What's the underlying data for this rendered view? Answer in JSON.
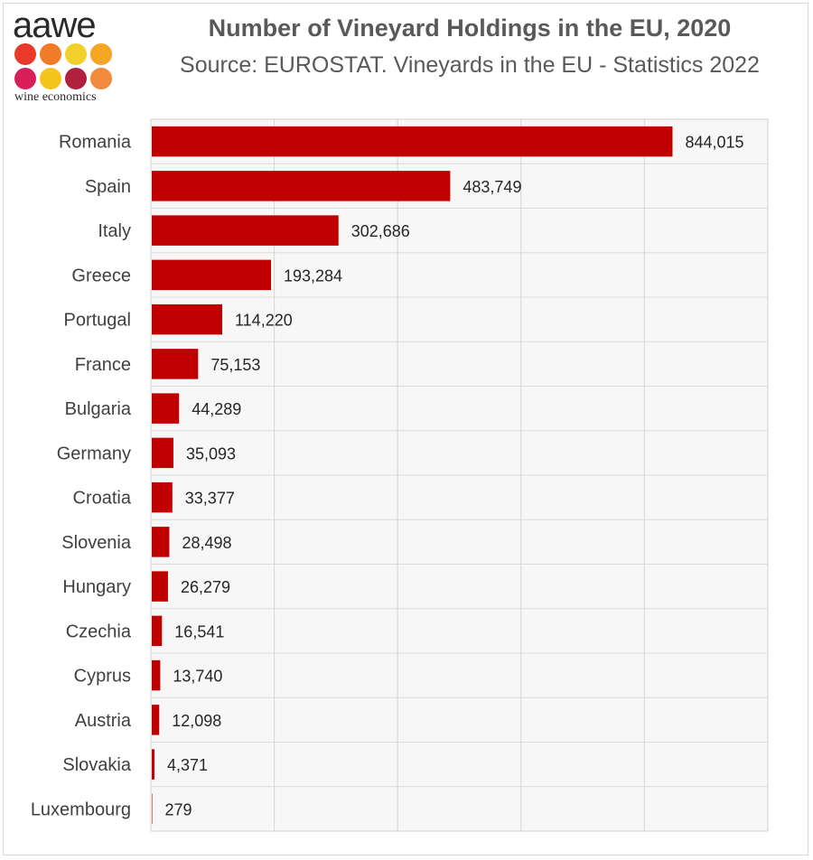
{
  "logo": {
    "wordmark": "aawe",
    "tagline": "wine economics",
    "dot_colors": [
      "#e8392b",
      "#f07c28",
      "#f2d02a",
      "#f5a623",
      "#d81e5b",
      "#f4c51c",
      "#b0203f",
      "#f08a3c"
    ]
  },
  "chart_data": {
    "type": "bar",
    "orientation": "horizontal",
    "title": "Number of Vineyard Holdings in the EU, 2020",
    "subtitle": "Source: EUROSTAT. Vineyards in the EU - Statistics 2022",
    "categories": [
      "Romania",
      "Spain",
      "Italy",
      "Greece",
      "Portugal",
      "France",
      "Bulgaria",
      "Germany",
      "Croatia",
      "Slovenia",
      "Hungary",
      "Czechia",
      "Cyprus",
      "Austria",
      "Slovakia",
      "Luxembourg"
    ],
    "values": [
      844015,
      483749,
      302686,
      193284,
      114220,
      75153,
      44289,
      35093,
      33377,
      28498,
      26279,
      16541,
      13740,
      12098,
      4371,
      279
    ],
    "value_labels": [
      "844,015",
      "483,749",
      "302,686",
      "193,284",
      "114,220",
      "75,153",
      "44,289",
      "35,093",
      "33,377",
      "28,498",
      "26,279",
      "16,541",
      "13,740",
      "12,098",
      "4,371",
      "279"
    ],
    "xlim": [
      0,
      1000000
    ],
    "grid": true,
    "bar_color": "#c00000",
    "legend": "none"
  }
}
